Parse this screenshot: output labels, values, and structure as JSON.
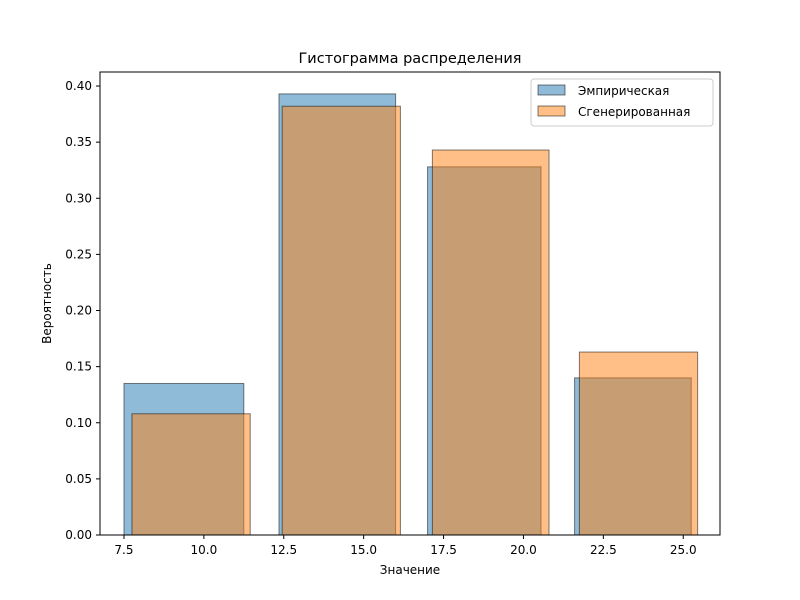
{
  "chart_data": {
    "type": "bar",
    "title": "Гистограмма распределения",
    "xlabel": "Значение",
    "ylabel": "Вероятность",
    "xlim": [
      6.75,
      26.15
    ],
    "ylim": [
      0,
      0.4125
    ],
    "xticks": [
      7.5,
      10.0,
      12.5,
      15.0,
      17.5,
      20.0,
      22.5,
      25.0
    ],
    "xtick_labels": [
      "7.5",
      "10.0",
      "12.5",
      "15.0",
      "17.5",
      "20.0",
      "22.5",
      "25.0"
    ],
    "yticks": [
      0,
      0.05,
      0.1,
      0.15,
      0.2,
      0.25,
      0.3,
      0.35,
      0.4
    ],
    "ytick_labels": [
      "0.00",
      "0.05",
      "0.10",
      "0.15",
      "0.20",
      "0.25",
      "0.30",
      "0.35",
      "0.40"
    ],
    "grid": false,
    "legend_position": "top-right",
    "series": [
      {
        "name": "Эмпирическая",
        "color": "#1f77b4",
        "bins": [
          {
            "x0": 7.5,
            "x1": 11.25,
            "value": 0.135
          },
          {
            "x0": 12.35,
            "x1": 16.0,
            "value": 0.393
          },
          {
            "x0": 17.0,
            "x1": 20.55,
            "value": 0.328
          },
          {
            "x0": 21.6,
            "x1": 25.25,
            "value": 0.14
          }
        ]
      },
      {
        "name": "Сгенерированная",
        "color": "#ff7f0e",
        "bins": [
          {
            "x0": 7.75,
            "x1": 11.45,
            "value": 0.108
          },
          {
            "x0": 12.45,
            "x1": 16.15,
            "value": 0.382
          },
          {
            "x0": 17.15,
            "x1": 20.8,
            "value": 0.343
          },
          {
            "x0": 21.75,
            "x1": 25.45,
            "value": 0.163
          }
        ]
      }
    ]
  }
}
